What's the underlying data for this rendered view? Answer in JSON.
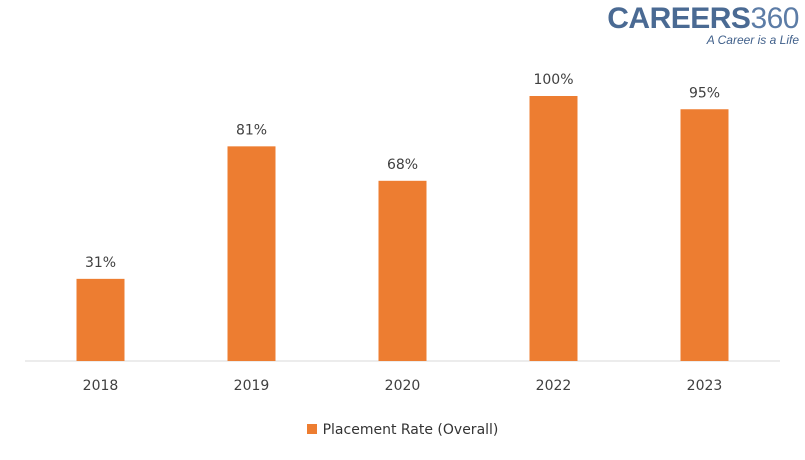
{
  "logo": {
    "main": "CAREERS",
    "num": "360",
    "tagline": "A Career is a Life"
  },
  "colors": {
    "bar": "#ED7D31",
    "axis": "#d9d9d9",
    "text": "#404040"
  },
  "chart_data": {
    "type": "bar",
    "categories": [
      "2018",
      "2019",
      "2020",
      "2022",
      "2023"
    ],
    "series": [
      {
        "name": "Placement Rate (Overall)",
        "values": [
          31,
          81,
          68,
          100,
          95
        ],
        "labels": [
          "31%",
          "81%",
          "68%",
          "100%",
          "95%"
        ]
      }
    ],
    "ylim": [
      0,
      100
    ],
    "grid": false,
    "legend": "bottom"
  }
}
